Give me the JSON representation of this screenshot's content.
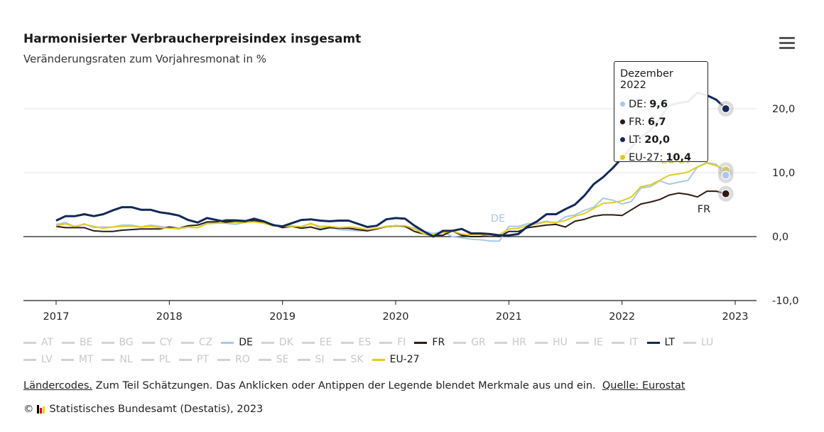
{
  "title": "Harmonisierter Verbraucherpreisindex insgesamt",
  "subtitle": "Veränderungsraten zum Vorjahresmonat in %",
  "colors": {
    "DE": "#a8c8ec",
    "FR": "#2d1c10",
    "LT": "#12295a",
    "EU-27": "#e2cb1f",
    "inactive": "#d3d3d3",
    "grid": "#e6e6e6"
  },
  "chart_data": {
    "type": "line",
    "x_start": "2017-01",
    "x_end": "2022-12",
    "x_ticks": [
      "2017",
      "2018",
      "2019",
      "2020",
      "2021",
      "2022",
      "2023"
    ],
    "y_ticks": [
      "20,0",
      "10,0",
      "0,0",
      "-10,0"
    ],
    "y_tick_values": [
      20,
      10,
      0,
      -10
    ],
    "ylim": [
      -10,
      20
    ],
    "series": [
      {
        "name": "DE",
        "values": [
          1.9,
          2.2,
          1.5,
          2.0,
          1.4,
          1.5,
          1.5,
          1.8,
          1.8,
          1.5,
          1.8,
          1.6,
          1.4,
          1.2,
          1.5,
          1.4,
          2.2,
          2.1,
          2.1,
          1.9,
          2.2,
          2.4,
          2.2,
          1.7,
          1.7,
          1.7,
          1.4,
          2.1,
          1.3,
          1.5,
          1.1,
          1.0,
          0.9,
          0.9,
          1.2,
          1.5,
          1.6,
          1.7,
          1.3,
          0.8,
          0.5,
          0.8,
          0.0,
          -0.2,
          -0.4,
          -0.5,
          -0.7,
          -0.7,
          1.6,
          1.6,
          2.0,
          2.1,
          2.4,
          2.1,
          3.1,
          3.4,
          4.1,
          4.6,
          6.0,
          5.7,
          5.1,
          5.5,
          7.6,
          7.8,
          8.7,
          8.2,
          8.5,
          8.8,
          10.9,
          11.6,
          11.3,
          9.6
        ]
      },
      {
        "name": "FR",
        "values": [
          1.6,
          1.4,
          1.4,
          1.4,
          0.9,
          0.8,
          0.8,
          1.0,
          1.1,
          1.2,
          1.2,
          1.2,
          1.5,
          1.3,
          1.7,
          1.8,
          2.3,
          2.3,
          2.6,
          2.6,
          2.5,
          2.5,
          2.2,
          1.9,
          1.4,
          1.6,
          1.3,
          1.5,
          1.1,
          1.4,
          1.3,
          1.3,
          1.1,
          0.9,
          1.2,
          1.6,
          1.7,
          1.6,
          0.8,
          0.4,
          0.2,
          0.2,
          0.9,
          0.2,
          0.0,
          0.0,
          0.2,
          0.0,
          0.8,
          0.8,
          1.4,
          1.6,
          1.8,
          1.9,
          1.5,
          2.4,
          2.7,
          3.2,
          3.4,
          3.4,
          3.3,
          4.2,
          5.1,
          5.4,
          5.8,
          6.5,
          6.8,
          6.6,
          6.2,
          7.1,
          7.1,
          6.7
        ]
      },
      {
        "name": "LT",
        "values": [
          2.5,
          3.2,
          3.2,
          3.5,
          3.2,
          3.5,
          4.1,
          4.6,
          4.6,
          4.2,
          4.2,
          3.8,
          3.6,
          3.3,
          2.6,
          2.2,
          2.9,
          2.6,
          2.3,
          2.5,
          2.4,
          2.8,
          2.4,
          1.8,
          1.6,
          2.1,
          2.6,
          2.7,
          2.5,
          2.4,
          2.5,
          2.5,
          2.0,
          1.5,
          1.7,
          2.7,
          2.9,
          2.8,
          1.7,
          0.8,
          0.0,
          0.9,
          0.9,
          1.2,
          0.5,
          0.5,
          0.4,
          0.2,
          0.2,
          0.4,
          1.6,
          2.4,
          3.5,
          3.5,
          4.3,
          5.0,
          6.4,
          8.2,
          9.3,
          10.7,
          12.3,
          14.0,
          15.6,
          16.6,
          18.5,
          20.5,
          20.9,
          21.1,
          22.5,
          22.1,
          21.4,
          20.0
        ]
      },
      {
        "name": "EU-27",
        "values": [
          1.7,
          2.0,
          1.6,
          1.9,
          1.6,
          1.3,
          1.5,
          1.6,
          1.6,
          1.5,
          1.6,
          1.4,
          1.3,
          1.3,
          1.5,
          1.4,
          2.0,
          2.1,
          2.2,
          2.2,
          2.2,
          2.3,
          2.1,
          1.7,
          1.6,
          1.6,
          1.6,
          2.0,
          1.6,
          1.6,
          1.4,
          1.5,
          1.4,
          1.1,
          1.3,
          1.6,
          1.7,
          1.7,
          1.2,
          0.4,
          0.3,
          0.6,
          0.9,
          0.4,
          0.3,
          0.3,
          0.2,
          0.3,
          1.2,
          1.3,
          1.7,
          2.0,
          2.3,
          2.2,
          2.5,
          3.2,
          3.6,
          4.4,
          5.2,
          5.3,
          5.6,
          6.2,
          7.8,
          8.1,
          8.8,
          9.6,
          9.8,
          10.1,
          10.9,
          11.5,
          11.1,
          10.4
        ]
      }
    ],
    "series_labels": [
      {
        "series": "DE",
        "text": "DE"
      },
      {
        "series": "FR",
        "text": "FR"
      },
      {
        "series": "EU-27",
        "text": "EU-27"
      }
    ]
  },
  "legend": {
    "row1": [
      {
        "label": "AT",
        "active": false
      },
      {
        "label": "BE",
        "active": false
      },
      {
        "label": "BG",
        "active": false
      },
      {
        "label": "CY",
        "active": false
      },
      {
        "label": "CZ",
        "active": false
      },
      {
        "label": "DE",
        "active": true
      },
      {
        "label": "DK",
        "active": false
      },
      {
        "label": "EE",
        "active": false
      },
      {
        "label": "ES",
        "active": false
      },
      {
        "label": "FI",
        "active": false
      },
      {
        "label": "FR",
        "active": true
      },
      {
        "label": "GR",
        "active": false
      },
      {
        "label": "HR",
        "active": false
      },
      {
        "label": "HU",
        "active": false
      },
      {
        "label": "IE",
        "active": false
      },
      {
        "label": "IT",
        "active": false
      },
      {
        "label": "LT",
        "active": true
      },
      {
        "label": "LU",
        "active": false
      }
    ],
    "row2": [
      {
        "label": "LV",
        "active": false
      },
      {
        "label": "MT",
        "active": false
      },
      {
        "label": "NL",
        "active": false
      },
      {
        "label": "PL",
        "active": false
      },
      {
        "label": "PT",
        "active": false
      },
      {
        "label": "RO",
        "active": false
      },
      {
        "label": "SE",
        "active": false
      },
      {
        "label": "SI",
        "active": false
      },
      {
        "label": "SK",
        "active": false
      },
      {
        "label": "EU-27",
        "active": true
      }
    ]
  },
  "tooltip": {
    "heading": "Dezember 2022",
    "rows": [
      {
        "series": "DE",
        "label": "DE:",
        "value": "9,6"
      },
      {
        "series": "FR",
        "label": "FR:",
        "value": "6,7"
      },
      {
        "series": "LT",
        "label": "LT:",
        "value": "20,0"
      },
      {
        "series": "EU-27",
        "label": "EU-27:",
        "value": "10,4"
      }
    ]
  },
  "footnote": {
    "link1": "Ländercodes.",
    "text": " Zum Teil Schätzungen. Das Anklicken oder Antippen der Legende blendet Merkmale aus und ein.",
    "link2": "Quelle: Eurostat"
  },
  "copyright": {
    "symbol": "©",
    "text": "Statistisches Bundesamt (Destatis), 2023",
    "logo_colors": [
      "#000000",
      "#dd0000",
      "#ffce00"
    ]
  }
}
